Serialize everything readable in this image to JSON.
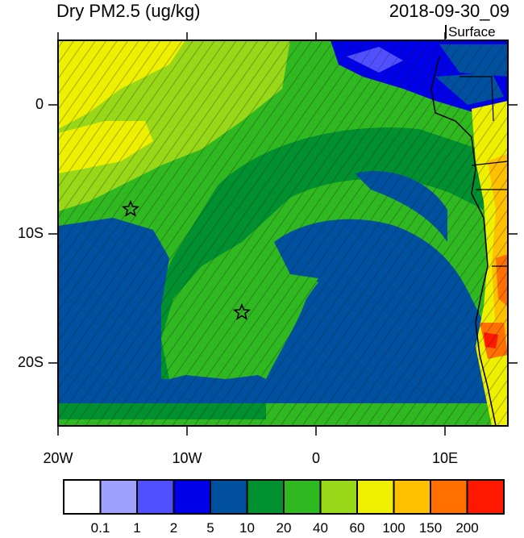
{
  "title": "Dry PM2.5 (ug/kg)",
  "timestamp": "2018-09-30_09",
  "level": "Surface",
  "lat_labels": [
    "0",
    "10S",
    "20S"
  ],
  "lon_labels": [
    "20W",
    "10W",
    "0",
    "10E"
  ],
  "colorbar": {
    "labels": [
      "0.1",
      "1",
      "2",
      "5",
      "10",
      "20",
      "40",
      "60",
      "100",
      "150",
      "200"
    ],
    "colors": [
      "#ffffff",
      "#a0a0ff",
      "#5050ff",
      "#0000e8",
      "#0050a0",
      "#009030",
      "#30b820",
      "#98d818",
      "#eef000",
      "#ffc000",
      "#ff7000",
      "#ff1800"
    ]
  },
  "markers": [
    "star-marker",
    "star-marker"
  ]
}
